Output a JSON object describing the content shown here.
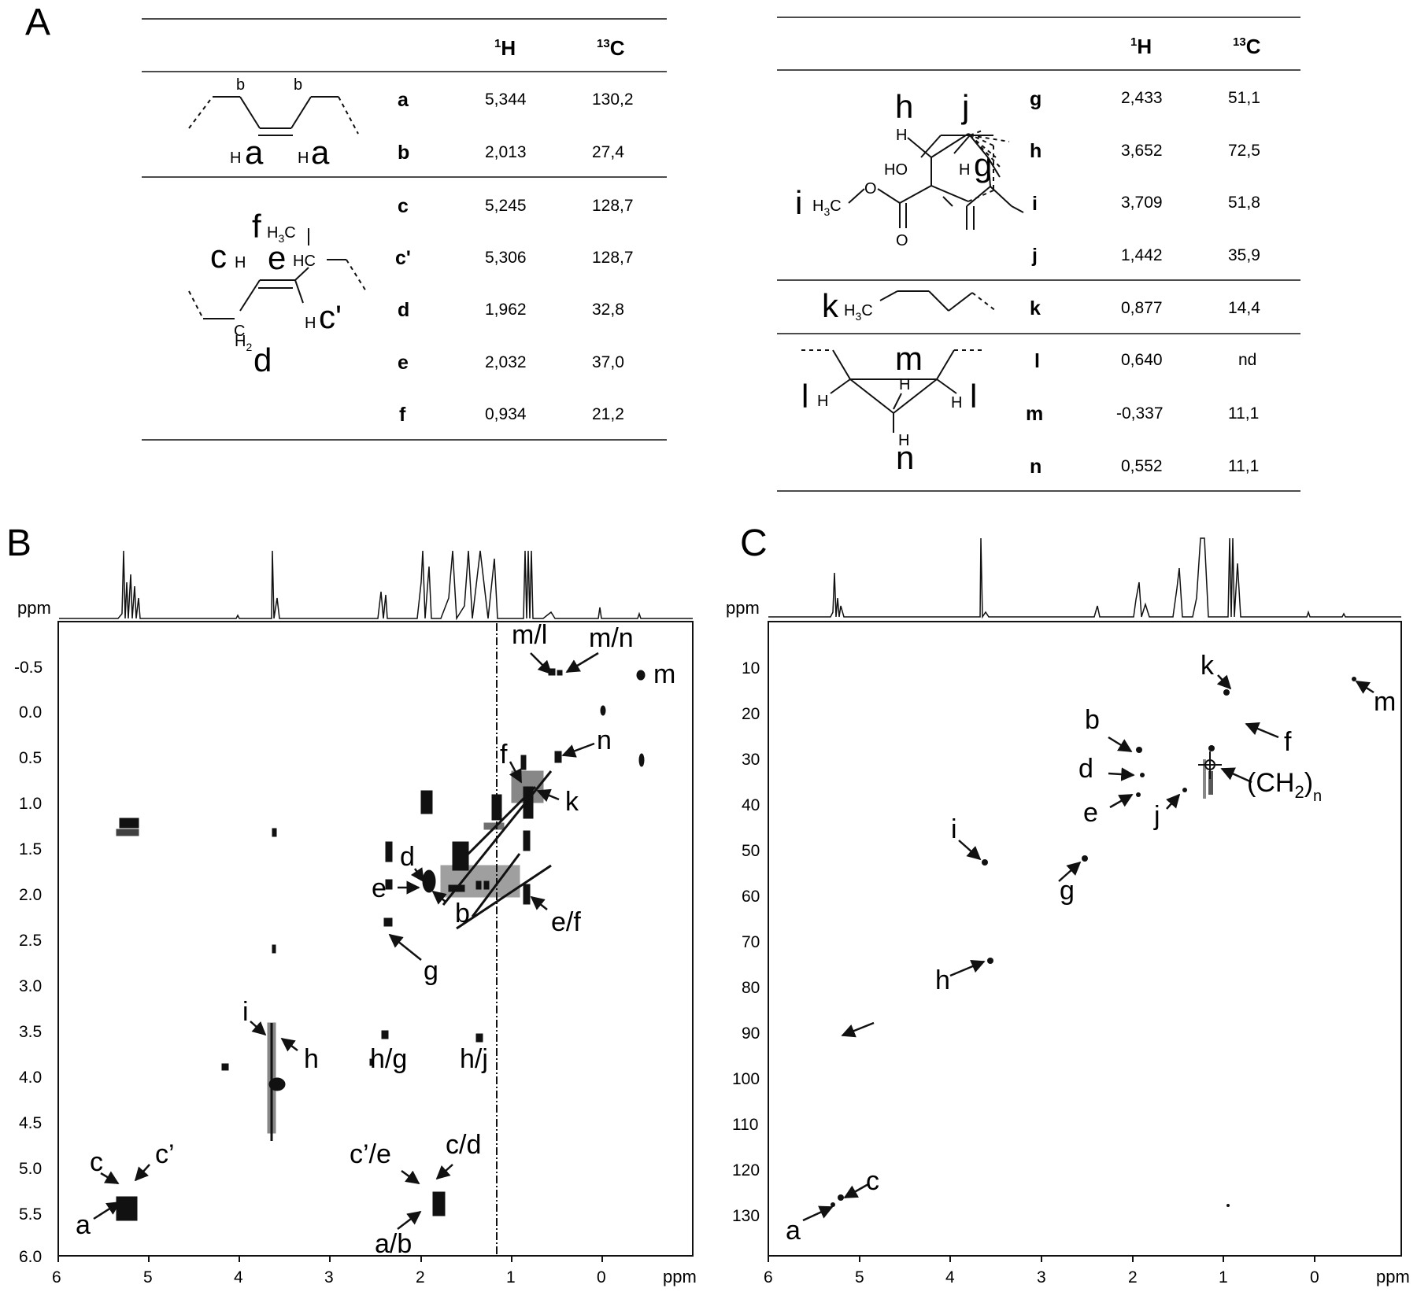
{
  "panels": {
    "A": "A",
    "B": "B",
    "C": "C"
  },
  "table_left": {
    "h1": "1",
    "h1b": "H",
    "c13": "13",
    "c13b": "C",
    "rows": [
      {
        "label": "a",
        "h": "5,344",
        "c": "130,2"
      },
      {
        "label": "b",
        "h": "2,013",
        "c": "27,4"
      },
      {
        "label": "c",
        "h": "5,245",
        "c": "128,7"
      },
      {
        "label": "c'",
        "h": "5,306",
        "c": "128,7"
      },
      {
        "label": "d",
        "h": "1,962",
        "c": "32,8"
      },
      {
        "label": "e",
        "h": "2,032",
        "c": "37,0"
      },
      {
        "label": "f",
        "h": "0,934",
        "c": "21,2"
      }
    ]
  },
  "table_right": {
    "h1": "1",
    "h1b": "H",
    "c13": "13",
    "c13b": "C",
    "rows": [
      {
        "label": "g",
        "h": "2,433",
        "c": "51,1"
      },
      {
        "label": "h",
        "h": "3,652",
        "c": "72,5"
      },
      {
        "label": "i",
        "h": "3,709",
        "c": "51,8"
      },
      {
        "label": "j",
        "h": "1,442",
        "c": "35,9"
      },
      {
        "label": "k",
        "h": "0,877",
        "c": "14,4"
      },
      {
        "label": "l",
        "h": "0,640",
        "c": "nd"
      },
      {
        "label": "m",
        "h": "-0,337",
        "c": "11,1"
      },
      {
        "label": "n",
        "h": "0,552",
        "c": "11,1"
      }
    ]
  },
  "structures": {
    "s1": {
      "b1": "b",
      "b2": "b",
      "h1": "H",
      "a1": "a",
      "h2": "H",
      "a2": "a"
    },
    "s2": {
      "f": "f",
      "h3c": "H",
      "sub3": "3",
      "c1": "C",
      "cl": "c",
      "h": "H",
      "e": "e",
      "hc": "HC",
      "h2": "H",
      "sub2": "2",
      "c2": "C",
      "d": "d",
      "hc2": "H",
      "cp": "c'"
    },
    "s3": {
      "h": "h",
      "j": "j",
      "H": "H",
      "ho": "HO",
      "H2": "H",
      "g": "g",
      "i": "i",
      "h3c": "H",
      "sub3": "3",
      "c": "C",
      "o1": "O",
      "o2": "O"
    },
    "s4": {
      "k": "k",
      "h3c": "H",
      "sub3": "3",
      "c": "C"
    },
    "s5": {
      "m": "m",
      "H1": "H",
      "l1": "l",
      "H2": "H",
      "H3": "H",
      "l2": "l",
      "H4": "H",
      "n": "n"
    }
  },
  "plot_b": {
    "axis_unit_y": "ppm",
    "axis_unit_x": "ppm",
    "x_ticks": [
      "6",
      "5",
      "4",
      "3",
      "2",
      "1",
      "0"
    ],
    "y_ticks": [
      "-0.5",
      "0.0",
      "0.5",
      "1.0",
      "1.5",
      "2.0",
      "2.5",
      "3.0",
      "3.5",
      "4.0",
      "4.5",
      "5.0",
      "5.5",
      "6.0"
    ],
    "labels": {
      "ml": "m/l",
      "mn": "m/n",
      "m": "m",
      "n": "n",
      "f": "f",
      "k": "k",
      "d": "d",
      "e": "e",
      "b": "b",
      "ef": "e/f",
      "g": "g",
      "i": "i",
      "h": "h",
      "hg": "h/g",
      "hj": "h/j",
      "c": "c",
      "cp": "c’",
      "a": "a",
      "cpe": "c’/e",
      "cd": "c/d",
      "ab": "a/b"
    }
  },
  "plot_c": {
    "axis_unit_y": "ppm",
    "axis_unit_x": "ppm",
    "x_ticks": [
      "6",
      "5",
      "4",
      "3",
      "2",
      "1",
      "0"
    ],
    "y_ticks": [
      "10",
      "20",
      "30",
      "40",
      "50",
      "60",
      "70",
      "80",
      "90",
      "100",
      "110",
      "120",
      "130"
    ],
    "labels": {
      "k": "k",
      "m": "m",
      "b": "b",
      "f": "f",
      "d": "d",
      "ch2": "(CH",
      "ch2sub": "2",
      "ch2close": ")",
      "ch2n": "n",
      "e": "e",
      "j": "j",
      "i": "i",
      "g": "g",
      "h": "h",
      "c": "c",
      "a": "a"
    }
  }
}
